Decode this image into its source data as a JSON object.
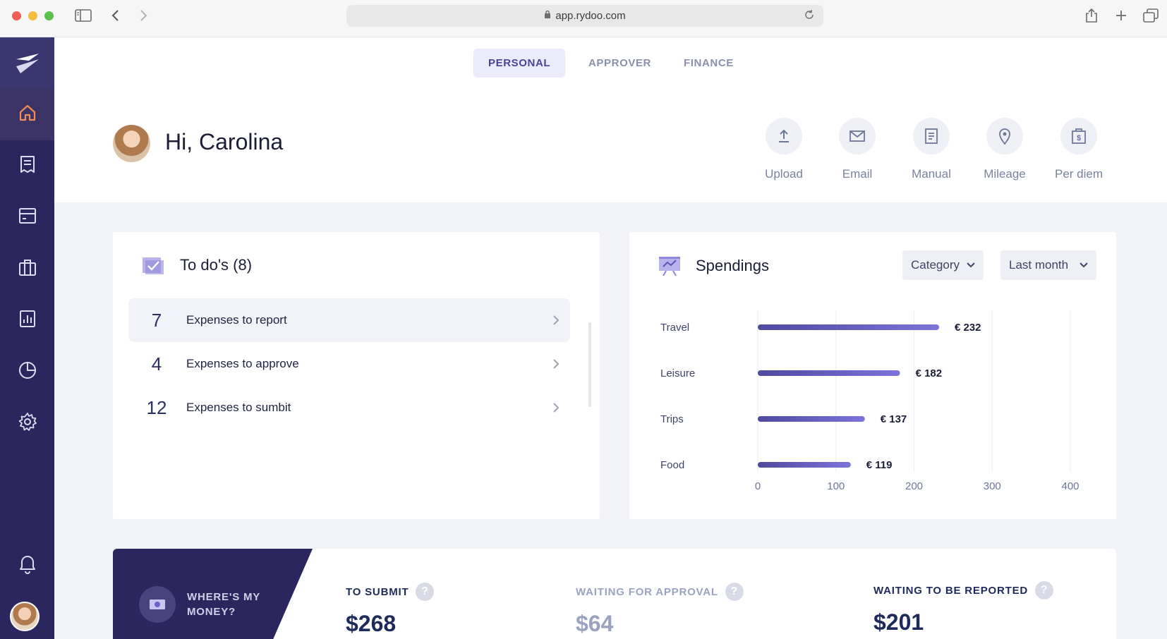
{
  "browser": {
    "url": "app.rydoo.com"
  },
  "nav_tabs": [
    {
      "label": "PERSONAL",
      "active": true
    },
    {
      "label": "APPROVER",
      "active": false
    },
    {
      "label": "FINANCE",
      "active": false
    }
  ],
  "sidebar": {
    "items": [
      {
        "icon": "home-icon",
        "active": true
      },
      {
        "icon": "expense-receipt-icon",
        "active": false
      },
      {
        "icon": "card-icon",
        "active": false
      },
      {
        "icon": "travel-bag-icon",
        "active": false
      },
      {
        "icon": "report-icon",
        "active": false
      },
      {
        "icon": "analytics-pie-icon",
        "active": false
      },
      {
        "icon": "settings-icon",
        "active": false
      }
    ]
  },
  "greeting": {
    "title": "Hi, Carolina"
  },
  "actions": [
    {
      "label": "Upload",
      "icon": "upload-icon"
    },
    {
      "label": "Email",
      "icon": "email-icon"
    },
    {
      "label": "Manual",
      "icon": "manual-icon"
    },
    {
      "label": "Mileage",
      "icon": "location-pin-icon"
    },
    {
      "label": "Per diem",
      "icon": "per-diem-icon"
    }
  ],
  "todos": {
    "title": "To do's (8)",
    "items": [
      {
        "count": "7",
        "label": "Expenses to report"
      },
      {
        "count": "4",
        "label": "Expenses to approve"
      },
      {
        "count": "12",
        "label": "Expenses to sumbit"
      }
    ]
  },
  "spendings": {
    "title": "Spendings",
    "filter_category": "Category",
    "filter_period": "Last month"
  },
  "chart_data": {
    "type": "bar",
    "orientation": "horizontal",
    "categories": [
      "Travel",
      "Leisure",
      "Trips",
      "Food"
    ],
    "values": [
      232,
      182,
      137,
      119
    ],
    "value_labels": [
      "€ 232",
      "€ 182",
      "€ 137",
      "€ 119"
    ],
    "xlim": [
      0,
      400
    ],
    "xticks": [
      "0",
      "100",
      "200",
      "300",
      "400"
    ],
    "grid": true
  },
  "money": {
    "label": "WHERE'S MY MONEY?",
    "stats": [
      {
        "label": "TO SUBMIT",
        "value": "$268",
        "color": "#1d2a5c"
      },
      {
        "label": "WAITING FOR APPROVAL",
        "value": "$64",
        "color": "#9aa2c2"
      },
      {
        "label": "WAITING TO BE REPORTED",
        "value": "$201",
        "color": "#1d2a5c"
      }
    ]
  },
  "colors": {
    "sidebar": "#2b275e",
    "accent": "#ef8a5a",
    "bar": "#6c62c9"
  }
}
